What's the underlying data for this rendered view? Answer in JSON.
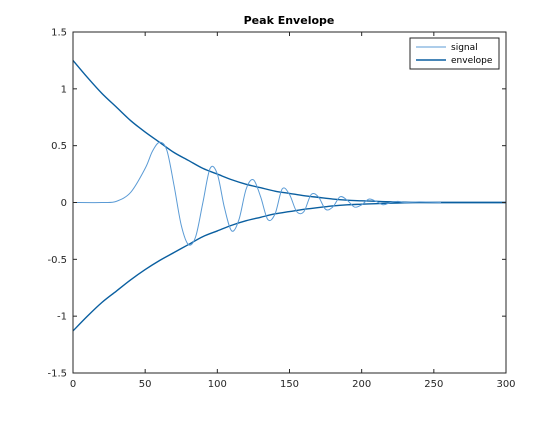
{
  "chart_data": {
    "type": "line",
    "title": "Peak Envelope",
    "xlabel": "",
    "ylabel": "",
    "xlim": [
      0,
      300
    ],
    "ylim": [
      -1.5,
      1.5
    ],
    "xticks": [
      0,
      50,
      100,
      150,
      200,
      250,
      300
    ],
    "yticks": [
      -1.5,
      -1,
      -0.5,
      0,
      0.5,
      1,
      1.5
    ],
    "xtick_labels": [
      "0",
      "50",
      "100",
      "150",
      "200",
      "250",
      "300"
    ],
    "ytick_labels": [
      "-1.5",
      "-1",
      "-0.5",
      "0",
      "0.5",
      "1",
      "1.5"
    ],
    "grid": false,
    "legend_position": "top-right",
    "colors": {
      "signal": "#5b9bd5",
      "envelope": "#0a5fa0",
      "axis": "#262626"
    },
    "series": [
      {
        "name": "signal",
        "x": [
          0,
          20,
          30,
          40,
          50,
          55,
          60,
          65,
          70,
          75,
          80,
          85,
          90,
          95,
          100,
          105,
          110,
          115,
          120,
          125,
          130,
          135,
          140,
          145,
          150,
          155,
          160,
          165,
          170,
          175,
          180,
          185,
          190,
          195,
          200,
          205,
          210,
          215,
          220,
          225,
          230,
          240,
          255
        ],
        "y": [
          0,
          0,
          0.01,
          0.09,
          0.3,
          0.45,
          0.53,
          0.46,
          0.15,
          -0.2,
          -0.37,
          -0.3,
          0.0,
          0.3,
          0.25,
          -0.05,
          -0.25,
          -0.15,
          0.12,
          0.2,
          0.05,
          -0.15,
          -0.1,
          0.12,
          0.07,
          -0.08,
          -0.08,
          0.07,
          0.05,
          -0.06,
          -0.04,
          0.05,
          0.02,
          -0.04,
          -0.02,
          0.03,
          0.01,
          -0.02,
          0.0,
          0.01,
          0.0,
          0.005,
          0.0
        ]
      },
      {
        "name": "envelope",
        "x": [
          0,
          10,
          20,
          30,
          40,
          50,
          60,
          70,
          80,
          90,
          100,
          110,
          120,
          130,
          140,
          150,
          160,
          170,
          180,
          190,
          200,
          210,
          220,
          230,
          240,
          250,
          260,
          270,
          280,
          290,
          300
        ],
        "y_upper": [
          1.25,
          1.1,
          0.96,
          0.84,
          0.72,
          0.62,
          0.53,
          0.44,
          0.37,
          0.3,
          0.25,
          0.2,
          0.16,
          0.13,
          0.1,
          0.08,
          0.06,
          0.045,
          0.03,
          0.02,
          0.015,
          0.01,
          0.006,
          0.003,
          0.001,
          0.0,
          0.0,
          0.0,
          0.0,
          0.0,
          0.0
        ],
        "y_lower": [
          -1.13,
          -1.0,
          -0.88,
          -0.78,
          -0.68,
          -0.59,
          -0.51,
          -0.44,
          -0.37,
          -0.3,
          -0.25,
          -0.2,
          -0.16,
          -0.13,
          -0.1,
          -0.08,
          -0.06,
          -0.045,
          -0.03,
          -0.02,
          -0.015,
          -0.01,
          -0.006,
          -0.003,
          -0.001,
          0.0,
          0.0,
          0.0,
          0.0,
          0.0,
          0.0
        ]
      }
    ]
  }
}
